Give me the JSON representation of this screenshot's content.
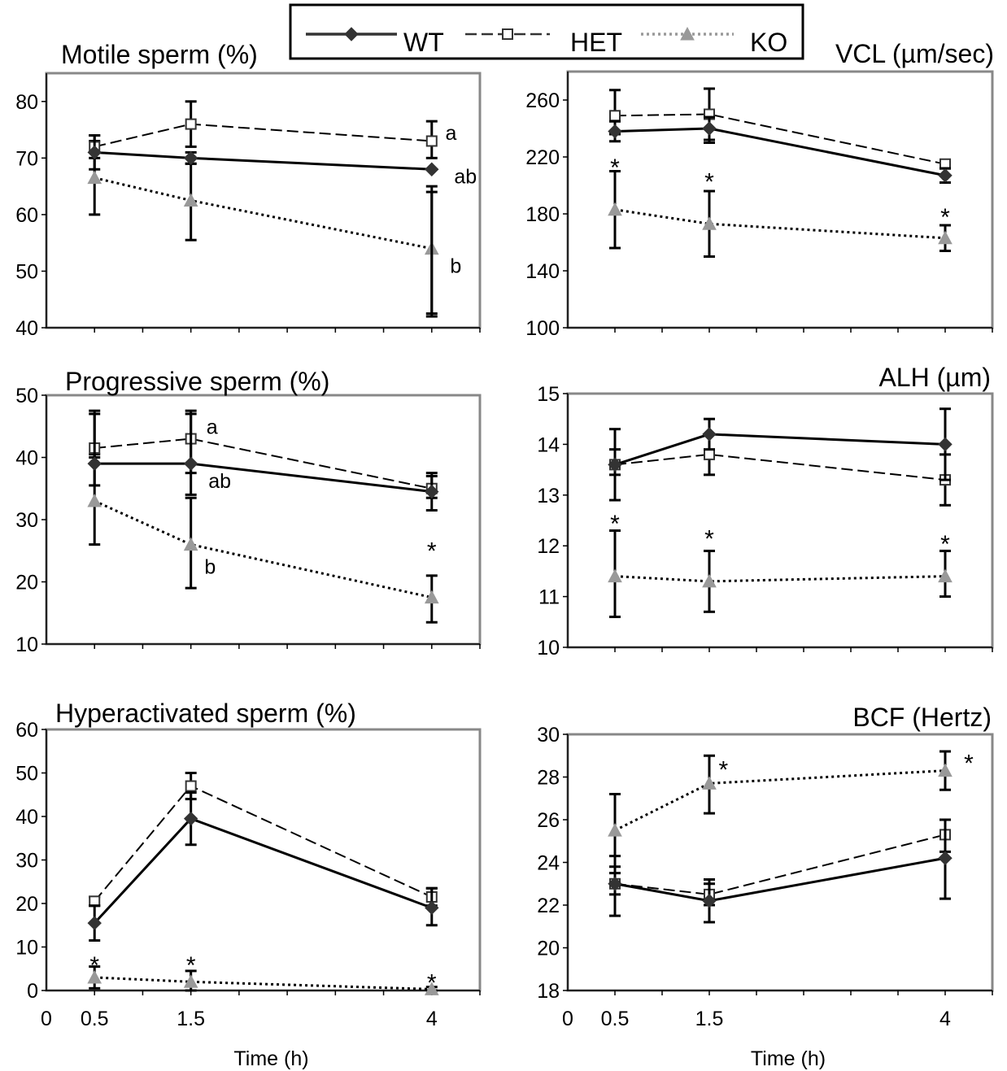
{
  "legend": {
    "entries": [
      {
        "name": "WT",
        "marker": "diamond",
        "dash": "solid",
        "color": "#333333"
      },
      {
        "name": "HET",
        "marker": "open-square",
        "dash": "dashed",
        "color": "#333333"
      },
      {
        "name": "KO",
        "marker": "triangle",
        "dash": "dotted",
        "color": "#999999"
      }
    ]
  },
  "chart_data": [
    {
      "type": "line",
      "title": "Motile sperm (%)",
      "title_align": "left",
      "xlabel": "",
      "ylabel": "",
      "x": [
        0.5,
        1.5,
        4
      ],
      "xlim": [
        0,
        4.5
      ],
      "ylim": [
        40,
        85
      ],
      "yticks": [
        40,
        50,
        60,
        70,
        80
      ],
      "xtick_labels": [],
      "grid": false,
      "series": [
        {
          "name": "WT",
          "values": [
            71,
            70,
            68
          ],
          "err_high": [
            74,
            71,
            65
          ],
          "err_low": [
            68,
            69,
            42
          ]
        },
        {
          "name": "HET",
          "values": [
            72,
            76,
            73
          ],
          "err_high": [
            74,
            80,
            76.5
          ],
          "err_low": [
            70,
            72,
            70
          ]
        },
        {
          "name": "KO",
          "values": [
            66.5,
            62.5,
            54
          ],
          "err_high": [
            73,
            69,
            64
          ],
          "err_low": [
            60,
            55.5,
            42.5
          ]
        }
      ],
      "annotations": [
        {
          "text": "a",
          "x": 4.2,
          "y": 74.5
        },
        {
          "text": "ab",
          "x": 4.35,
          "y": 66.8
        },
        {
          "text": "b",
          "x": 4.25,
          "y": 51
        }
      ]
    },
    {
      "type": "line",
      "title": "VCL (µm/sec)",
      "title_align": "right",
      "xlabel": "",
      "ylabel": "",
      "x": [
        0.5,
        1.5,
        4
      ],
      "xlim": [
        0,
        4.5
      ],
      "ylim": [
        100,
        280
      ],
      "yticks": [
        100,
        140,
        180,
        220,
        260
      ],
      "xtick_labels": [],
      "grid": false,
      "series": [
        {
          "name": "WT",
          "values": [
            238,
            240,
            207
          ],
          "err_high": [
            245,
            248,
            212
          ],
          "err_low": [
            231,
            230,
            202
          ]
        },
        {
          "name": "HET",
          "values": [
            249,
            250,
            215
          ],
          "err_high": [
            267,
            268,
            218
          ],
          "err_low": [
            236,
            232,
            212
          ]
        },
        {
          "name": "KO",
          "values": [
            183,
            173,
            163
          ],
          "err_high": [
            210,
            196,
            172
          ],
          "err_low": [
            156,
            150,
            154
          ]
        }
      ],
      "annotations": [
        {
          "text": "*",
          "x": 0.5,
          "y": 215
        },
        {
          "text": "*",
          "x": 1.5,
          "y": 205
        },
        {
          "text": "*",
          "x": 4,
          "y": 180
        }
      ]
    },
    {
      "type": "line",
      "title": "Progressive sperm (%)",
      "title_align": "left",
      "xlabel": "",
      "ylabel": "",
      "x": [
        0.5,
        1.5,
        4
      ],
      "xlim": [
        0,
        4.5
      ],
      "ylim": [
        10,
        50
      ],
      "yticks": [
        10,
        20,
        30,
        40,
        50
      ],
      "xtick_labels": [],
      "grid": false,
      "series": [
        {
          "name": "WT",
          "values": [
            39,
            39,
            34.5
          ],
          "err_high": [
            47,
            47,
            37.5
          ],
          "err_low": [
            35.5,
            34,
            31.5
          ]
        },
        {
          "name": "HET",
          "values": [
            41.5,
            43,
            35
          ],
          "err_high": [
            47.5,
            47.5,
            37
          ],
          "err_low": [
            40,
            37.5,
            33.5
          ]
        },
        {
          "name": "KO",
          "values": [
            33,
            26,
            17.5
          ],
          "err_high": [
            40.5,
            33.5,
            21
          ],
          "err_low": [
            26,
            19,
            13.5
          ]
        }
      ],
      "annotations": [
        {
          "text": "a",
          "x": 1.72,
          "y": 45
        },
        {
          "text": "ab",
          "x": 1.8,
          "y": 36.3
        },
        {
          "text": "b",
          "x": 1.7,
          "y": 22.5
        },
        {
          "text": "*",
          "x": 4,
          "y": 25.5
        }
      ]
    },
    {
      "type": "line",
      "title": "ALH (µm)",
      "title_align": "right",
      "xlabel": "",
      "ylabel": "",
      "x": [
        0.5,
        1.5,
        4
      ],
      "xlim": [
        0,
        4.5
      ],
      "ylim": [
        10,
        15
      ],
      "yticks": [
        10,
        11,
        12,
        13,
        14,
        15
      ],
      "xtick_labels": [],
      "grid": false,
      "series": [
        {
          "name": "WT",
          "values": [
            13.6,
            14.2,
            14
          ],
          "err_high": [
            14.3,
            14.5,
            14.7
          ],
          "err_low": [
            12.9,
            13.9,
            13.3
          ]
        },
        {
          "name": "HET",
          "values": [
            13.6,
            13.8,
            13.3
          ],
          "err_high": [
            13.9,
            14.2,
            13.8
          ],
          "err_low": [
            13.4,
            13.4,
            12.8
          ]
        },
        {
          "name": "KO",
          "values": [
            11.4,
            11.3,
            11.4
          ],
          "err_high": [
            12.3,
            11.9,
            11.9
          ],
          "err_low": [
            10.6,
            10.7,
            11
          ]
        }
      ],
      "annotations": [
        {
          "text": "*",
          "x": 0.5,
          "y": 12.5
        },
        {
          "text": "*",
          "x": 1.5,
          "y": 12.2
        },
        {
          "text": "*",
          "x": 4,
          "y": 12.1
        }
      ]
    },
    {
      "type": "line",
      "title": "Hyperactivated sperm (%)",
      "title_align": "left",
      "xlabel": "Time (h)",
      "ylabel": "",
      "x": [
        0.5,
        1.5,
        4
      ],
      "xlim": [
        0,
        4.5
      ],
      "ylim": [
        0,
        60
      ],
      "yticks": [
        0,
        10,
        20,
        30,
        40,
        50,
        60
      ],
      "xtick_labels": [
        "0",
        "0.5",
        "1.5",
        "4"
      ],
      "grid": false,
      "series": [
        {
          "name": "WT",
          "values": [
            15.5,
            39.5,
            19
          ],
          "err_high": [
            19.5,
            45.5,
            23.5
          ],
          "err_low": [
            11.5,
            33.5,
            15
          ]
        },
        {
          "name": "HET",
          "values": [
            20.5,
            47,
            21.5
          ],
          "err_high": [
            21.5,
            50,
            23.5
          ],
          "err_low": [
            19.5,
            44,
            19.5
          ]
        },
        {
          "name": "KO",
          "values": [
            3,
            2,
            0.3
          ],
          "err_high": [
            5.5,
            4.5,
            0.8
          ],
          "err_low": [
            0.5,
            0,
            0
          ]
        }
      ],
      "annotations": [
        {
          "text": "*",
          "x": 0.5,
          "y": 6.5
        },
        {
          "text": "*",
          "x": 1.5,
          "y": 6.5
        },
        {
          "text": "*",
          "x": 4,
          "y": 2.5
        }
      ]
    },
    {
      "type": "line",
      "title": "BCF (Hertz)",
      "title_align": "right",
      "xlabel": "Time (h)",
      "ylabel": "",
      "x": [
        0.5,
        1.5,
        4
      ],
      "xlim": [
        0,
        4.5
      ],
      "ylim": [
        18,
        30
      ],
      "yticks": [
        18,
        20,
        22,
        24,
        26,
        28,
        30
      ],
      "xtick_labels": [
        "0",
        "0.5",
        "1.5",
        "4"
      ],
      "grid": false,
      "series": [
        {
          "name": "WT",
          "values": [
            23,
            22.2,
            24.2
          ],
          "err_high": [
            24.3,
            23.2,
            26
          ],
          "err_low": [
            21.5,
            21.2,
            22.3
          ]
        },
        {
          "name": "HET",
          "values": [
            23,
            22.5,
            25.3
          ],
          "err_high": [
            23.5,
            23,
            26
          ],
          "err_low": [
            22.5,
            22,
            24.5
          ]
        },
        {
          "name": "KO",
          "values": [
            25.5,
            27.7,
            28.3
          ],
          "err_high": [
            27.2,
            29,
            29.2
          ],
          "err_low": [
            23.8,
            26.3,
            27.4
          ]
        }
      ],
      "annotations": [
        {
          "text": "*",
          "x": 1.65,
          "y": 28.5
        },
        {
          "text": "*",
          "x": 4.25,
          "y": 28.8
        }
      ]
    }
  ]
}
